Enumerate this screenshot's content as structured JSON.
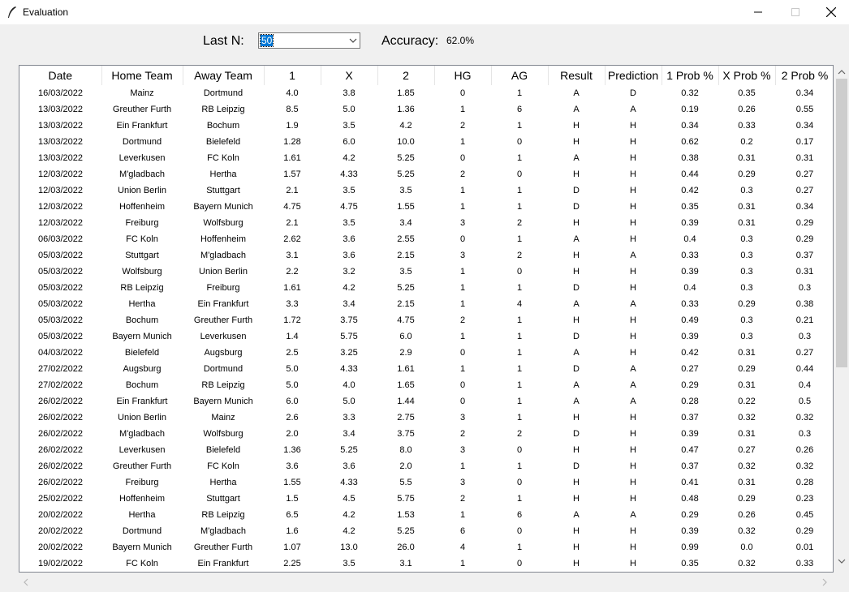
{
  "window": {
    "title": "Evaluation"
  },
  "toolbar": {
    "last_n_label": "Last N:",
    "last_n_value": "50",
    "accuracy_label": "Accuracy:",
    "accuracy_value": "62.0%"
  },
  "table": {
    "columns": [
      "Date",
      "Home Team",
      "Away Team",
      "1",
      "X",
      "2",
      "HG",
      "AG",
      "Result",
      "Prediction",
      "1 Prob %",
      "X Prob %",
      "2 Prob %"
    ],
    "rows": [
      [
        "16/03/2022",
        "Mainz",
        "Dortmund",
        "4.0",
        "3.8",
        "1.85",
        "0",
        "1",
        "A",
        "D",
        "0.32",
        "0.35",
        "0.34"
      ],
      [
        "13/03/2022",
        "Greuther Furth",
        "RB Leipzig",
        "8.5",
        "5.0",
        "1.36",
        "1",
        "6",
        "A",
        "A",
        "0.19",
        "0.26",
        "0.55"
      ],
      [
        "13/03/2022",
        "Ein Frankfurt",
        "Bochum",
        "1.9",
        "3.5",
        "4.2",
        "2",
        "1",
        "H",
        "H",
        "0.34",
        "0.33",
        "0.34"
      ],
      [
        "13/03/2022",
        "Dortmund",
        "Bielefeld",
        "1.28",
        "6.0",
        "10.0",
        "1",
        "0",
        "H",
        "H",
        "0.62",
        "0.2",
        "0.17"
      ],
      [
        "13/03/2022",
        "Leverkusen",
        "FC Koln",
        "1.61",
        "4.2",
        "5.25",
        "0",
        "1",
        "A",
        "H",
        "0.38",
        "0.31",
        "0.31"
      ],
      [
        "12/03/2022",
        "M'gladbach",
        "Hertha",
        "1.57",
        "4.33",
        "5.25",
        "2",
        "0",
        "H",
        "H",
        "0.44",
        "0.29",
        "0.27"
      ],
      [
        "12/03/2022",
        "Union Berlin",
        "Stuttgart",
        "2.1",
        "3.5",
        "3.5",
        "1",
        "1",
        "D",
        "H",
        "0.42",
        "0.3",
        "0.27"
      ],
      [
        "12/03/2022",
        "Hoffenheim",
        "Bayern Munich",
        "4.75",
        "4.75",
        "1.55",
        "1",
        "1",
        "D",
        "H",
        "0.35",
        "0.31",
        "0.34"
      ],
      [
        "12/03/2022",
        "Freiburg",
        "Wolfsburg",
        "2.1",
        "3.5",
        "3.4",
        "3",
        "2",
        "H",
        "H",
        "0.39",
        "0.31",
        "0.29"
      ],
      [
        "06/03/2022",
        "FC Koln",
        "Hoffenheim",
        "2.62",
        "3.6",
        "2.55",
        "0",
        "1",
        "A",
        "H",
        "0.4",
        "0.3",
        "0.29"
      ],
      [
        "05/03/2022",
        "Stuttgart",
        "M'gladbach",
        "3.1",
        "3.6",
        "2.15",
        "3",
        "2",
        "H",
        "A",
        "0.33",
        "0.3",
        "0.37"
      ],
      [
        "05/03/2022",
        "Wolfsburg",
        "Union Berlin",
        "2.2",
        "3.2",
        "3.5",
        "1",
        "0",
        "H",
        "H",
        "0.39",
        "0.3",
        "0.31"
      ],
      [
        "05/03/2022",
        "RB Leipzig",
        "Freiburg",
        "1.61",
        "4.2",
        "5.25",
        "1",
        "1",
        "D",
        "H",
        "0.4",
        "0.3",
        "0.3"
      ],
      [
        "05/03/2022",
        "Hertha",
        "Ein Frankfurt",
        "3.3",
        "3.4",
        "2.15",
        "1",
        "4",
        "A",
        "A",
        "0.33",
        "0.29",
        "0.38"
      ],
      [
        "05/03/2022",
        "Bochum",
        "Greuther Furth",
        "1.72",
        "3.75",
        "4.75",
        "2",
        "1",
        "H",
        "H",
        "0.49",
        "0.3",
        "0.21"
      ],
      [
        "05/03/2022",
        "Bayern Munich",
        "Leverkusen",
        "1.4",
        "5.75",
        "6.0",
        "1",
        "1",
        "D",
        "H",
        "0.39",
        "0.3",
        "0.3"
      ],
      [
        "04/03/2022",
        "Bielefeld",
        "Augsburg",
        "2.5",
        "3.25",
        "2.9",
        "0",
        "1",
        "A",
        "H",
        "0.42",
        "0.31",
        "0.27"
      ],
      [
        "27/02/2022",
        "Augsburg",
        "Dortmund",
        "5.0",
        "4.33",
        "1.61",
        "1",
        "1",
        "D",
        "A",
        "0.27",
        "0.29",
        "0.44"
      ],
      [
        "27/02/2022",
        "Bochum",
        "RB Leipzig",
        "5.0",
        "4.0",
        "1.65",
        "0",
        "1",
        "A",
        "A",
        "0.29",
        "0.31",
        "0.4"
      ],
      [
        "26/02/2022",
        "Ein Frankfurt",
        "Bayern Munich",
        "6.0",
        "5.0",
        "1.44",
        "0",
        "1",
        "A",
        "A",
        "0.28",
        "0.22",
        "0.5"
      ],
      [
        "26/02/2022",
        "Union Berlin",
        "Mainz",
        "2.6",
        "3.3",
        "2.75",
        "3",
        "1",
        "H",
        "H",
        "0.37",
        "0.32",
        "0.32"
      ],
      [
        "26/02/2022",
        "M'gladbach",
        "Wolfsburg",
        "2.0",
        "3.4",
        "3.75",
        "2",
        "2",
        "D",
        "H",
        "0.39",
        "0.31",
        "0.3"
      ],
      [
        "26/02/2022",
        "Leverkusen",
        "Bielefeld",
        "1.36",
        "5.25",
        "8.0",
        "3",
        "0",
        "H",
        "H",
        "0.47",
        "0.27",
        "0.26"
      ],
      [
        "26/02/2022",
        "Greuther Furth",
        "FC Koln",
        "3.6",
        "3.6",
        "2.0",
        "1",
        "1",
        "D",
        "H",
        "0.37",
        "0.32",
        "0.32"
      ],
      [
        "26/02/2022",
        "Freiburg",
        "Hertha",
        "1.55",
        "4.33",
        "5.5",
        "3",
        "0",
        "H",
        "H",
        "0.41",
        "0.31",
        "0.28"
      ],
      [
        "25/02/2022",
        "Hoffenheim",
        "Stuttgart",
        "1.5",
        "4.5",
        "5.75",
        "2",
        "1",
        "H",
        "H",
        "0.48",
        "0.29",
        "0.23"
      ],
      [
        "20/02/2022",
        "Hertha",
        "RB Leipzig",
        "6.5",
        "4.2",
        "1.53",
        "1",
        "6",
        "A",
        "A",
        "0.29",
        "0.26",
        "0.45"
      ],
      [
        "20/02/2022",
        "Dortmund",
        "M'gladbach",
        "1.6",
        "4.2",
        "5.25",
        "6",
        "0",
        "H",
        "H",
        "0.39",
        "0.32",
        "0.29"
      ],
      [
        "20/02/2022",
        "Bayern Munich",
        "Greuther Furth",
        "1.07",
        "13.0",
        "26.0",
        "4",
        "1",
        "H",
        "H",
        "0.99",
        "0.0",
        "0.01"
      ],
      [
        "19/02/2022",
        "FC Koln",
        "Ein Frankfurt",
        "2.25",
        "3.5",
        "3.1",
        "1",
        "0",
        "H",
        "H",
        "0.35",
        "0.32",
        "0.33"
      ]
    ]
  }
}
